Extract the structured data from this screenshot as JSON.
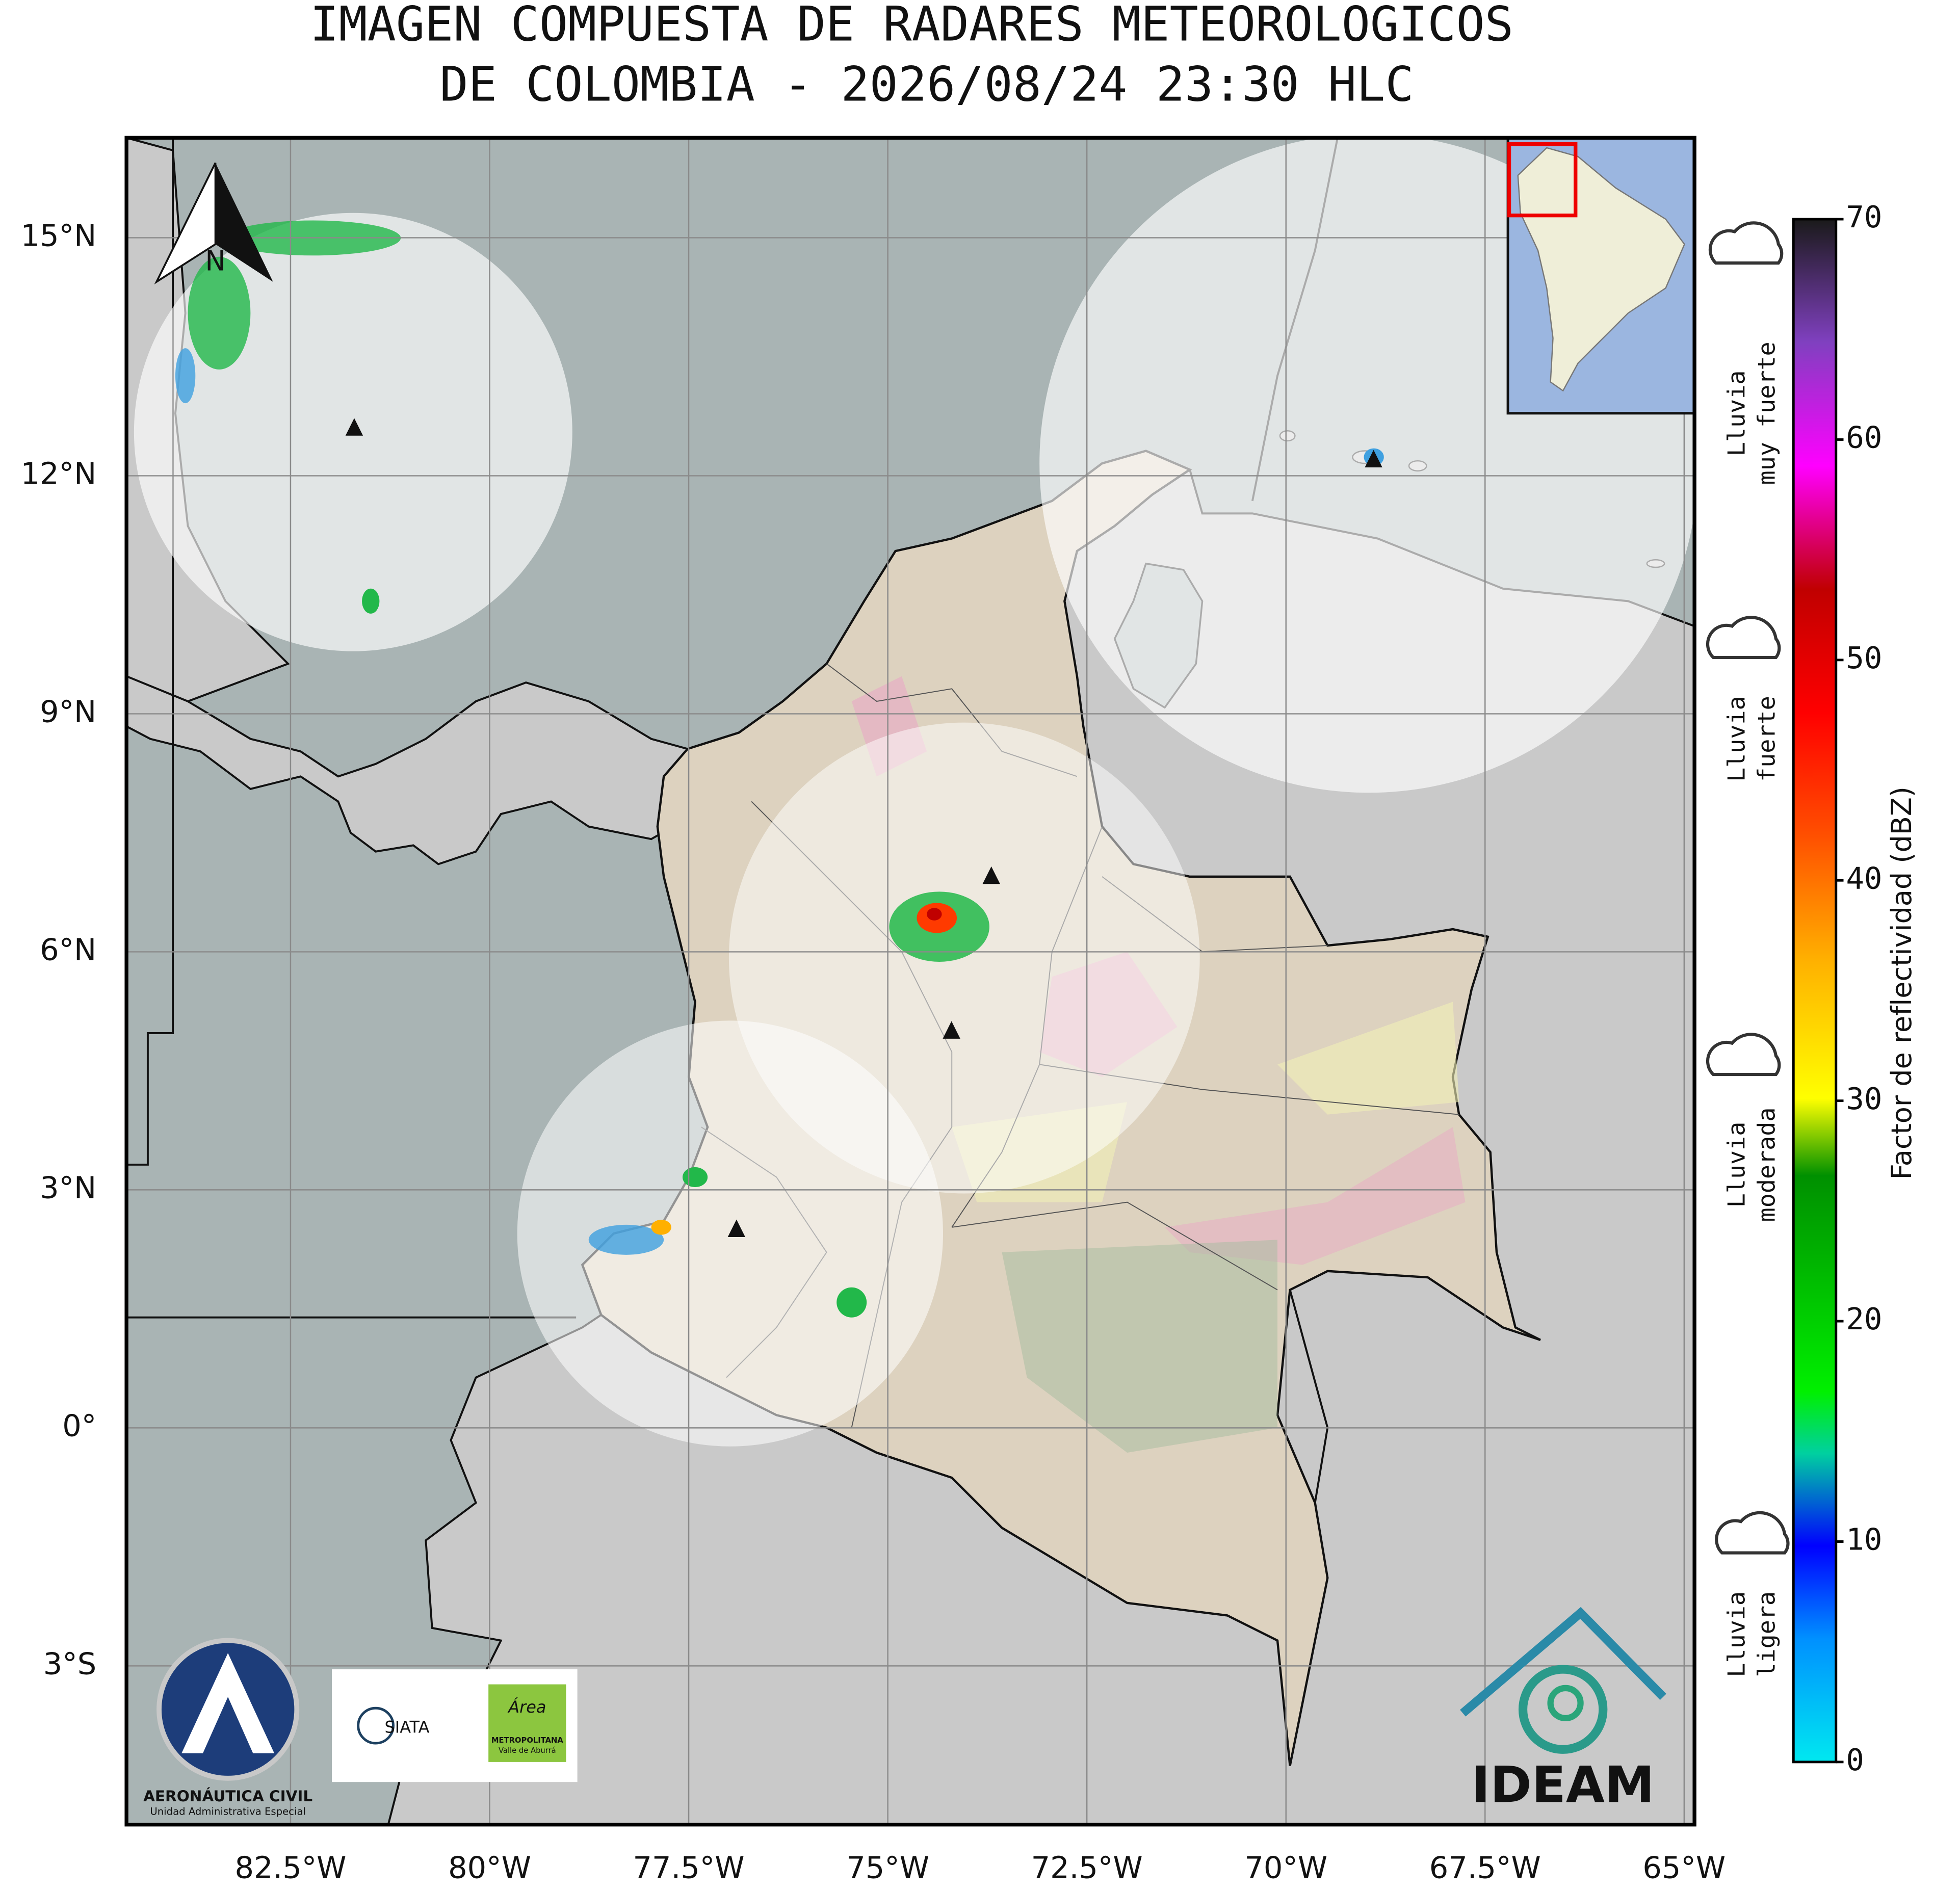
{
  "header": {
    "title_lines": [
      "IMAGEN COMPUESTA DE RADARES METEOROLOGICOS",
      "DE COLOMBIA - 2026/08/24 23:30 HLC"
    ]
  },
  "map": {
    "xlim": [
      -84.56,
      -64.87
    ],
    "ylim": [
      -5.0,
      16.26
    ],
    "xticks": [
      {
        "value": -82.5,
        "label": "82.5°W"
      },
      {
        "value": -80,
        "label": "80°W"
      },
      {
        "value": -77.5,
        "label": "77.5°W"
      },
      {
        "value": -75,
        "label": "75°W"
      },
      {
        "value": -72.5,
        "label": "72.5°W"
      },
      {
        "value": -70,
        "label": "70°W"
      },
      {
        "value": -67.5,
        "label": "67.5°W"
      },
      {
        "value": -65,
        "label": "65°W"
      }
    ],
    "yticks": [
      {
        "value": -3,
        "label": "3°S"
      },
      {
        "value": 0,
        "label": "0°"
      },
      {
        "value": 3,
        "label": "3°N"
      },
      {
        "value": 6,
        "label": "6°N"
      },
      {
        "value": 9,
        "label": "9°N"
      },
      {
        "value": 12,
        "label": "12°N"
      },
      {
        "value": 15,
        "label": "15°N"
      }
    ],
    "radars": [
      {
        "lon": -81.7,
        "lat": 12.6
      },
      {
        "lon": -73.7,
        "lat": 6.95
      },
      {
        "lon": -74.2,
        "lat": 5.0
      },
      {
        "lon": -76.9,
        "lat": 2.5
      },
      {
        "lon": -68.9,
        "lat": 12.2
      }
    ],
    "north_label": "N"
  },
  "colorbar": {
    "label": "Factor de reflectividad (dBZ)",
    "lim": [
      0,
      70
    ],
    "ticks": [
      0,
      10,
      20,
      30,
      40,
      50,
      60,
      70
    ]
  },
  "rain_levels": [
    {
      "lines": [
        "Lluvia",
        "muy fuerte"
      ]
    },
    {
      "lines": [
        "Lluvia",
        "fuerte"
      ]
    },
    {
      "lines": [
        "Lluvia",
        "moderada"
      ]
    },
    {
      "lines": [
        "Lluvia",
        "ligera"
      ]
    }
  ],
  "logos": {
    "aerocivil": [
      "AERONÁUTICA CIVIL",
      "Unidad Administrativa Especial"
    ],
    "siata": "SIATA",
    "area": [
      "Área",
      "METROPOLITANA",
      "Valle de Aburrá"
    ],
    "ideam": "IDEAM"
  }
}
